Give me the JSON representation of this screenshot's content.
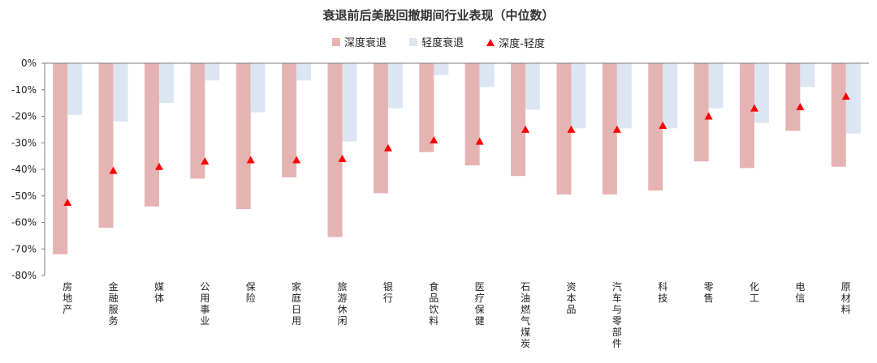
{
  "chart_data": {
    "type": "bar",
    "title": "衰退前后美股回撤期间行业表现（中位数）",
    "xlabel": "",
    "ylabel": "",
    "ylim": [
      -80,
      0
    ],
    "yticks": [
      0,
      -10,
      -20,
      -30,
      -40,
      -50,
      -60,
      -70,
      -80
    ],
    "ytick_labels": [
      "0%",
      "-10%",
      "-20%",
      "-30%",
      "-40%",
      "-50%",
      "-60%",
      "-70%",
      "-80%"
    ],
    "categories": [
      "房地产",
      "金融服务",
      "媒体",
      "公用事业",
      "保险",
      "家庭日用",
      "旅游休闲",
      "银行",
      "食品饮料",
      "医疗保健",
      "石油燃气煤炭",
      "资本品",
      "汽车与零部件",
      "科技",
      "零售",
      "化工",
      "电信",
      "原材料"
    ],
    "series": [
      {
        "name": "深度衰退",
        "kind": "bar",
        "color": "#e6b3b3",
        "values": [
          -72,
          -62,
          -54,
          -43.5,
          -55,
          -43,
          -65.5,
          -49,
          -33.5,
          -38.5,
          -42.5,
          -49.5,
          -49.5,
          -48,
          -37,
          -39.5,
          -25.5,
          -39
        ]
      },
      {
        "name": "轻度衰退",
        "kind": "bar",
        "color": "#dce6f2",
        "values": [
          -19.5,
          -22,
          -15,
          -6.5,
          -18.5,
          -6.5,
          -29.5,
          -17,
          -4.5,
          -9,
          -17.5,
          -24.5,
          -24.5,
          -24.5,
          -17,
          -22.5,
          -9,
          -26.5
        ]
      },
      {
        "name": "深度-轻度",
        "kind": "marker",
        "color": "#ff0000",
        "values": [
          -52.5,
          -40.5,
          -39,
          -37,
          -36.5,
          -36.5,
          -36,
          -32,
          -29,
          -29.5,
          -25,
          -25,
          -25,
          -23.5,
          -20,
          -17,
          -16.5,
          -12.5
        ]
      }
    ],
    "legend_position": "top-center",
    "grid": false
  }
}
